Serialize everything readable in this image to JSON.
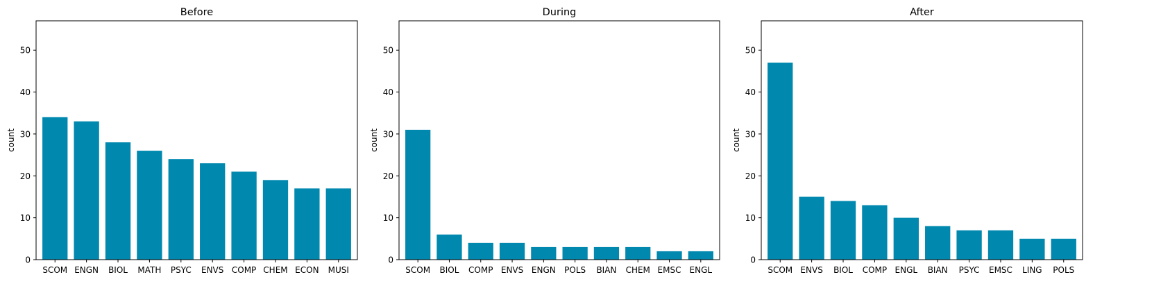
{
  "chart_data": [
    {
      "type": "bar",
      "title": "Before",
      "ylabel": "count",
      "xlabel": "",
      "ylim": [
        0,
        57
      ],
      "yticks": [
        0,
        10,
        20,
        30,
        40,
        50
      ],
      "grid": false,
      "categories": [
        "SCOM",
        "ENGN",
        "BIOL",
        "MATH",
        "PSYC",
        "ENVS",
        "COMP",
        "CHEM",
        "ECON",
        "MUSI"
      ],
      "values": [
        34,
        33,
        28,
        26,
        24,
        23,
        21,
        19,
        17,
        17
      ],
      "color": "#0088AF"
    },
    {
      "type": "bar",
      "title": "During",
      "ylabel": "count",
      "xlabel": "",
      "ylim": [
        0,
        57
      ],
      "yticks": [
        0,
        10,
        20,
        30,
        40,
        50
      ],
      "grid": false,
      "categories": [
        "SCOM",
        "BIOL",
        "COMP",
        "ENVS",
        "ENGN",
        "POLS",
        "BIAN",
        "CHEM",
        "EMSC",
        "ENGL"
      ],
      "values": [
        31,
        6,
        4,
        4,
        3,
        3,
        3,
        3,
        2,
        2
      ],
      "color": "#0088AF"
    },
    {
      "type": "bar",
      "title": "After",
      "ylabel": "count",
      "xlabel": "",
      "ylim": [
        0,
        57
      ],
      "yticks": [
        0,
        10,
        20,
        30,
        40,
        50
      ],
      "grid": false,
      "categories": [
        "SCOM",
        "ENVS",
        "BIOL",
        "COMP",
        "ENGL",
        "BIAN",
        "PSYC",
        "EMSC",
        "LING",
        "POLS"
      ],
      "values": [
        47,
        15,
        14,
        13,
        10,
        8,
        7,
        7,
        5,
        5
      ],
      "color": "#0088AF"
    }
  ]
}
